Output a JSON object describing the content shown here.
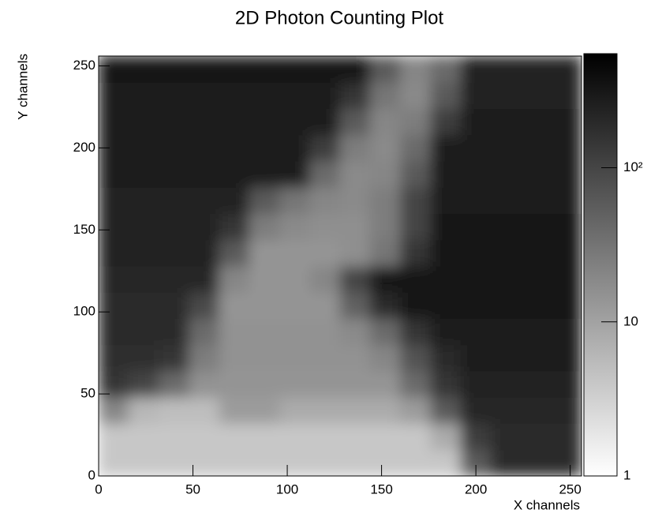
{
  "chart_data": {
    "type": "heatmap",
    "title": "2D Photon Counting Plot",
    "x_label": "X channels",
    "y_label": "Y channels",
    "xbins": [
      0,
      16,
      32,
      48,
      64,
      80,
      96,
      112,
      128,
      144,
      160,
      176,
      192,
      208,
      224,
      240,
      256
    ],
    "ybins": [
      0,
      16,
      32,
      48,
      64,
      80,
      96,
      112,
      128,
      144,
      160,
      176,
      192,
      208,
      224,
      240,
      256
    ],
    "z": [
      [
        4,
        4,
        4,
        4,
        4,
        4,
        4,
        4,
        4,
        4,
        4,
        4,
        60,
        200,
        200,
        200
      ],
      [
        4,
        4,
        4,
        4,
        4,
        4,
        4,
        4,
        4,
        4,
        4,
        8,
        120,
        200,
        200,
        200
      ],
      [
        20,
        6,
        5,
        5,
        12,
        12,
        8,
        8,
        8,
        8,
        12,
        60,
        220,
        220,
        220,
        220
      ],
      [
        150,
        100,
        40,
        15,
        14,
        14,
        14,
        14,
        14,
        14,
        40,
        150,
        250,
        250,
        250,
        250
      ],
      [
        180,
        170,
        150,
        25,
        15,
        15,
        15,
        15,
        15,
        20,
        70,
        200,
        260,
        260,
        260,
        260
      ],
      [
        190,
        190,
        190,
        40,
        15,
        15,
        15,
        15,
        18,
        40,
        150,
        270,
        270,
        270,
        270,
        270
      ],
      [
        200,
        200,
        200,
        90,
        14,
        14,
        14,
        14,
        50,
        200,
        300,
        300,
        300,
        300,
        300,
        300
      ],
      [
        220,
        220,
        220,
        220,
        20,
        14,
        14,
        20,
        100,
        300,
        300,
        300,
        300,
        300,
        300,
        300
      ],
      [
        230,
        230,
        230,
        230,
        60,
        14,
        14,
        14,
        16,
        30,
        150,
        300,
        300,
        300,
        300,
        300
      ],
      [
        240,
        240,
        240,
        240,
        150,
        25,
        18,
        16,
        16,
        25,
        100,
        300,
        300,
        300,
        300,
        300
      ],
      [
        250,
        250,
        250,
        250,
        250,
        60,
        30,
        20,
        18,
        25,
        100,
        290,
        290,
        290,
        290,
        290
      ],
      [
        260,
        260,
        260,
        260,
        260,
        260,
        260,
        40,
        18,
        20,
        60,
        280,
        280,
        280,
        280,
        280
      ],
      [
        270,
        270,
        270,
        270,
        270,
        270,
        270,
        120,
        25,
        18,
        40,
        270,
        270,
        270,
        270,
        270
      ],
      [
        280,
        280,
        280,
        280,
        280,
        280,
        280,
        280,
        60,
        20,
        25,
        120,
        260,
        260,
        260,
        260
      ],
      [
        290,
        290,
        290,
        290,
        290,
        290,
        290,
        290,
        150,
        30,
        18,
        60,
        250,
        250,
        250,
        250
      ],
      [
        300,
        300,
        300,
        300,
        300,
        300,
        300,
        300,
        300,
        60,
        20,
        40,
        250,
        250,
        250,
        250
      ]
    ],
    "xlim": [
      0,
      256
    ],
    "ylim": [
      0,
      256
    ],
    "xticks": [
      0,
      50,
      100,
      150,
      200,
      250
    ],
    "yticks": [
      0,
      50,
      100,
      150,
      200,
      250
    ],
    "zlim": [
      1,
      550
    ],
    "zticks": [
      1,
      10,
      {
        "value": 100,
        "label": "10²"
      }
    ],
    "zlog": true,
    "colormap": [
      "#ffffff",
      "#000000"
    ]
  }
}
